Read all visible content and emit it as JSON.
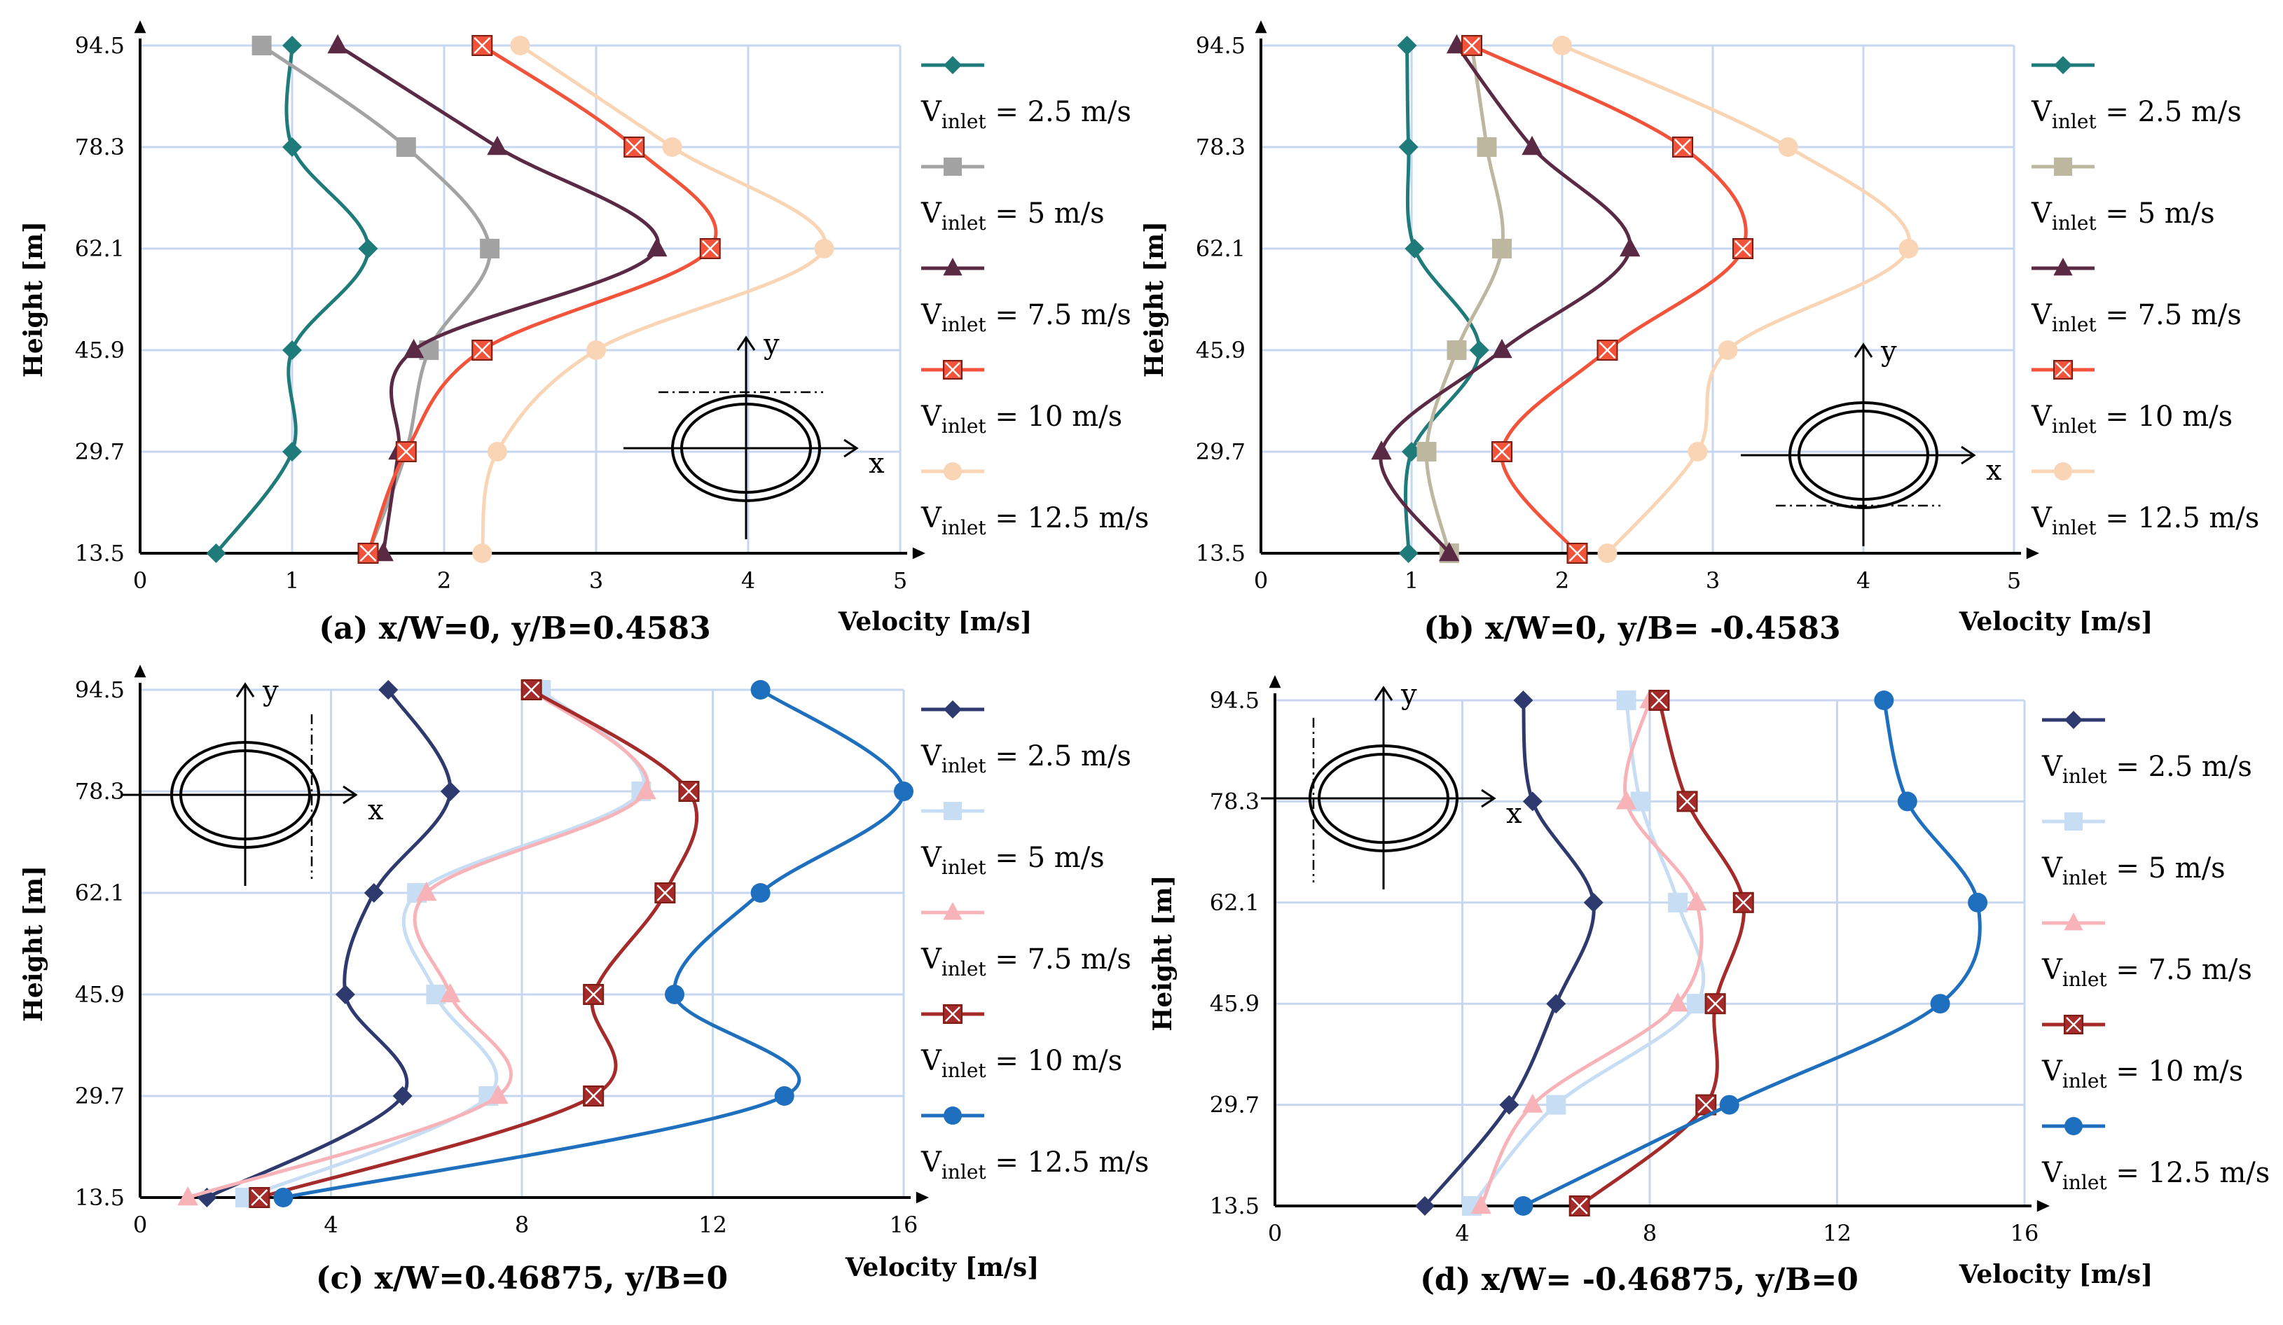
{
  "chart_data": [
    {
      "type": "line",
      "caption": "(a) x/W=0, y/B=0.4583",
      "xlabel": "Velocity [m/s]",
      "ylabel": "Height [m]",
      "xlim": [
        0,
        5
      ],
      "xticks": [
        "0",
        "1",
        "2",
        "3",
        "4",
        "5"
      ],
      "yticks": [
        "13.5",
        "29.7",
        "45.9",
        "62.1",
        "78.3",
        "94.5"
      ],
      "y": [
        13.5,
        29.7,
        45.9,
        62.1,
        78.3,
        94.5
      ],
      "series": [
        {
          "name": "V",
          "sub": "inlet",
          "suffix": " = 2.5 m/s",
          "marker": "diamond",
          "color": "#1f7a7a",
          "values": [
            0.5,
            1.0,
            1.0,
            1.5,
            1.0,
            1.0
          ]
        },
        {
          "name": "V",
          "sub": "inlet",
          "suffix": " = 5 m/s",
          "marker": "square",
          "color": "#a3a3a3",
          "values": [
            1.5,
            1.75,
            1.9,
            2.3,
            1.75,
            0.8
          ]
        },
        {
          "name": "V",
          "sub": "inlet",
          "suffix": " = 7.5 m/s",
          "marker": "triangle",
          "color": "#5a2a45",
          "values": [
            1.6,
            1.7,
            1.8,
            3.4,
            2.35,
            1.3
          ]
        },
        {
          "name": "V",
          "sub": "inlet",
          "suffix": " = 10 m/s",
          "marker": "xsquare",
          "color": "#f2533a",
          "values": [
            1.5,
            1.75,
            2.25,
            3.75,
            3.25,
            2.25
          ]
        },
        {
          "name": "V",
          "sub": "inlet",
          "suffix": " = 12.5 m/s",
          "marker": "circle",
          "color": "#f9d5b5",
          "values": [
            2.25,
            2.35,
            3.0,
            4.5,
            3.5,
            2.5
          ]
        }
      ],
      "inset": {
        "x_label": "x",
        "y_label": "y",
        "dash_line": "top"
      }
    },
    {
      "type": "line",
      "caption": "(b) x/W=0, y/B= -0.4583",
      "xlabel": "Velocity [m/s]",
      "ylabel": "Height [m]",
      "xlim": [
        0,
        5
      ],
      "xticks": [
        "0",
        "1",
        "2",
        "3",
        "4",
        "5"
      ],
      "yticks": [
        "13.5",
        "29.7",
        "45.9",
        "62.1",
        "78.3",
        "94.5"
      ],
      "y": [
        13.5,
        29.7,
        45.9,
        62.1,
        78.3,
        94.5
      ],
      "series": [
        {
          "name": "V",
          "sub": "inlet",
          "suffix": " = 2.5 m/s",
          "marker": "diamond",
          "color": "#1f7a7a",
          "values": [
            0.98,
            1.0,
            1.45,
            1.02,
            0.98,
            0.97
          ]
        },
        {
          "name": "V",
          "sub": "inlet",
          "suffix": " = 5 m/s",
          "marker": "square",
          "color": "#bdb7a0",
          "values": [
            1.25,
            1.1,
            1.3,
            1.6,
            1.5,
            1.4
          ]
        },
        {
          "name": "V",
          "sub": "inlet",
          "suffix": " = 7.5 m/s",
          "marker": "triangle",
          "color": "#5a2a45",
          "values": [
            1.25,
            0.8,
            1.6,
            2.45,
            1.8,
            1.3
          ]
        },
        {
          "name": "V",
          "sub": "inlet",
          "suffix": " = 10 m/s",
          "marker": "xsquare",
          "color": "#f2533a",
          "values": [
            2.1,
            1.6,
            2.3,
            3.2,
            2.8,
            1.4
          ]
        },
        {
          "name": "V",
          "sub": "inlet",
          "suffix": " = 12.5 m/s",
          "marker": "circle",
          "color": "#f9d5b5",
          "values": [
            2.3,
            2.9,
            3.1,
            4.3,
            3.5,
            2.0
          ]
        }
      ],
      "inset": {
        "x_label": "x",
        "y_label": "y",
        "dash_line": "bottom"
      }
    },
    {
      "type": "line",
      "caption": "(c) x/W=0.46875, y/B=0",
      "xlabel": "Velocity [m/s]",
      "ylabel": "Height [m]",
      "xlim": [
        0,
        16
      ],
      "xticks": [
        "0",
        "4",
        "8",
        "12",
        "16"
      ],
      "yticks": [
        "13.5",
        "29.7",
        "45.9",
        "62.1",
        "78.3",
        "94.5"
      ],
      "y": [
        13.5,
        29.7,
        45.9,
        62.1,
        78.3,
        94.5
      ],
      "series": [
        {
          "name": "V",
          "sub": "inlet",
          "suffix": " = 2.5 m/s",
          "marker": "diamond",
          "color": "#2e3a6e",
          "values": [
            1.4,
            5.5,
            4.3,
            4.9,
            6.5,
            5.2
          ]
        },
        {
          "name": "V",
          "sub": "inlet",
          "suffix": " = 5 m/s",
          "marker": "square",
          "color": "#c7ddf3",
          "values": [
            2.2,
            7.3,
            6.2,
            5.8,
            10.5,
            8.4
          ]
        },
        {
          "name": "V",
          "sub": "inlet",
          "suffix": " = 7.5 m/s",
          "marker": "triangle",
          "color": "#f7b3b8",
          "values": [
            1.0,
            7.5,
            6.5,
            6.0,
            10.6,
            8.2
          ]
        },
        {
          "name": "V",
          "sub": "inlet",
          "suffix": " = 10 m/s",
          "marker": "xsquare",
          "color": "#a52a2a",
          "values": [
            2.5,
            9.5,
            9.5,
            11.0,
            11.5,
            8.2
          ]
        },
        {
          "name": "V",
          "sub": "inlet",
          "suffix": " = 12.5 m/s",
          "marker": "circle",
          "color": "#1f6fbf",
          "values": [
            3.0,
            13.5,
            11.2,
            13.0,
            16.0,
            13.0
          ]
        }
      ],
      "inset": {
        "x_label": "x",
        "y_label": "y",
        "dash_line": "right"
      }
    },
    {
      "type": "line",
      "caption": "(d) x/W= -0.46875, y/B=0",
      "xlabel": "Velocity [m/s]",
      "ylabel": "Height [m]",
      "xlim": [
        0,
        16
      ],
      "xticks": [
        "0",
        "4",
        "8",
        "12",
        "16"
      ],
      "yticks": [
        "13.5",
        "29.7",
        "45.9",
        "62.1",
        "78.3",
        "94.5"
      ],
      "y": [
        13.5,
        29.7,
        45.9,
        62.1,
        78.3,
        94.5
      ],
      "series": [
        {
          "name": "V",
          "sub": "inlet",
          "suffix": " = 2.5 m/s",
          "marker": "diamond",
          "color": "#2e3a6e",
          "values": [
            3.2,
            5.0,
            6.0,
            6.8,
            5.5,
            5.3
          ]
        },
        {
          "name": "V",
          "sub": "inlet",
          "suffix": " = 5 m/s",
          "marker": "square",
          "color": "#c7ddf3",
          "values": [
            4.2,
            6.0,
            9.0,
            8.6,
            7.8,
            7.5
          ]
        },
        {
          "name": "V",
          "sub": "inlet",
          "suffix": " = 7.5 m/s",
          "marker": "triangle",
          "color": "#f7b3b8",
          "values": [
            4.4,
            5.5,
            8.6,
            9.0,
            7.5,
            8.0
          ]
        },
        {
          "name": "V",
          "sub": "inlet",
          "suffix": " = 10 m/s",
          "marker": "xsquare",
          "color": "#a52a2a",
          "values": [
            6.5,
            9.2,
            9.4,
            10.0,
            8.8,
            8.2
          ]
        },
        {
          "name": "V",
          "sub": "inlet",
          "suffix": " = 12.5 m/s",
          "marker": "circle",
          "color": "#1f6fbf",
          "values": [
            5.3,
            9.7,
            14.2,
            15.0,
            13.5,
            13.0
          ]
        }
      ],
      "inset": {
        "x_label": "x",
        "y_label": "y",
        "dash_line": "left"
      }
    }
  ]
}
